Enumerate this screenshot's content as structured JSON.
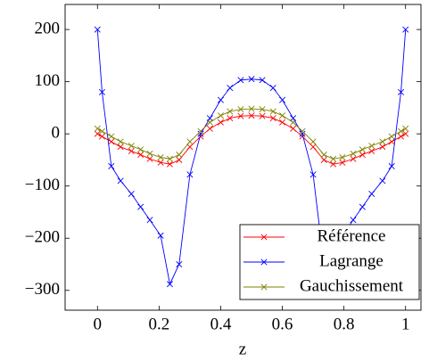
{
  "chart_data": {
    "type": "line",
    "x_label": "z",
    "x": [
      0,
      0.015,
      0.045,
      0.075,
      0.11,
      0.14,
      0.17,
      0.205,
      0.235,
      0.265,
      0.3,
      0.335,
      0.365,
      0.4,
      0.43,
      0.465,
      0.5,
      0.535,
      0.57,
      0.6,
      0.635,
      0.665,
      0.7,
      0.735,
      0.765,
      0.795,
      0.83,
      0.86,
      0.89,
      0.925,
      0.955,
      0.985,
      1
    ],
    "series": [
      {
        "name": "Référence",
        "color": "#ff0000",
        "values": [
          0,
          -5,
          -15,
          -25,
          -33,
          -40,
          -48,
          -55,
          -58,
          -50,
          -25,
          -5,
          10,
          22,
          30,
          34,
          35,
          34,
          30,
          22,
          10,
          -5,
          -25,
          -50,
          -58,
          -55,
          -48,
          -40,
          -33,
          -25,
          -15,
          -5,
          0
        ]
      },
      {
        "name": "Lagrange",
        "color": "#0000ff",
        "values": [
          200,
          80,
          -62,
          -90,
          -115,
          -140,
          -165,
          -195,
          -288,
          -250,
          -78,
          0,
          30,
          65,
          88,
          103,
          105,
          103,
          88,
          65,
          30,
          0,
          -78,
          -250,
          -288,
          -195,
          -165,
          -140,
          -115,
          -90,
          -62,
          80,
          200
        ]
      },
      {
        "name": "Gauchissement",
        "color": "#808000",
        "values": [
          10,
          5,
          -5,
          -15,
          -23,
          -30,
          -38,
          -45,
          -48,
          -40,
          -15,
          5,
          22,
          35,
          43,
          47,
          48,
          47,
          43,
          35,
          22,
          5,
          -15,
          -40,
          -48,
          -45,
          -38,
          -30,
          -23,
          -15,
          -5,
          5,
          10
        ]
      }
    ],
    "xlim": [
      -0.105,
      1.05
    ],
    "ylim": [
      -338,
      248
    ],
    "xticks": [
      0,
      0.2,
      0.4,
      0.6,
      0.8,
      1
    ],
    "yticks": [
      {
        "value": -300,
        "label": "−300"
      },
      {
        "value": -200,
        "label": "−200"
      },
      {
        "value": -100,
        "label": "−100"
      },
      0,
      100,
      200
    ],
    "legend": "south east",
    "grid": false
  }
}
